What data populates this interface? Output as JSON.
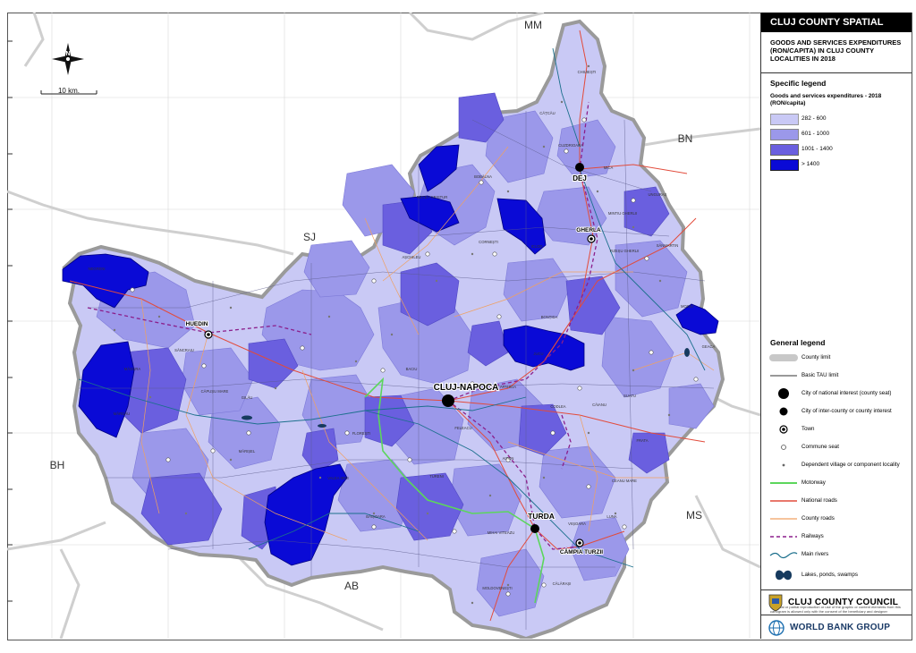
{
  "map": {
    "neighbors": [
      {
        "code": "MM"
      },
      {
        "code": "BN"
      },
      {
        "code": "SJ"
      },
      {
        "code": "BH"
      },
      {
        "code": "MS"
      },
      {
        "code": "AB"
      }
    ],
    "scale_label": "10 km.",
    "cities": [
      {
        "name": "CLUJ-NAPOCA",
        "type": "national"
      },
      {
        "name": "DEJ",
        "type": "county"
      },
      {
        "name": "TURDA",
        "type": "county"
      },
      {
        "name": "GHERLA",
        "type": "town"
      },
      {
        "name": "HUEDIN",
        "type": "town"
      },
      {
        "name": "CÂMPIA TURZII",
        "type": "town"
      }
    ],
    "localities": [
      "CHIUIEȘTI",
      "CĂȚCĂU",
      "CUZDRIOARA",
      "MICA",
      "UNGURAȘ",
      "BOBÂLNA",
      "RECEA-CRISTUR",
      "ICLOD",
      "SÂNMARTIN",
      "FIZEȘU GHERLII",
      "MINTIU GHERLII",
      "CORNEȘTI",
      "AȘCHILEU",
      "NEGRENI",
      "BONȚIDA",
      "JUCU",
      "CĂIANU",
      "GEACA",
      "MOCIU",
      "SUATU",
      "CODLEA",
      "FRATA",
      "CEANU MARE",
      "VIIȘOARA",
      "LUNA",
      "MIHAI VITEAZU",
      "CĂLĂRAȘI",
      "MOLDOVENEȘTI",
      "BĂIȘOARA",
      "VALEA IERII",
      "MĂRIȘEL",
      "MĂGURA",
      "SÂNCRAIU",
      "MĂRGĂU",
      "FLOREȘTI",
      "GILĂU",
      "BACIU",
      "FELEACU",
      "CĂPUȘU MARE",
      "APAHIDA",
      "TURENI",
      "AITON"
    ]
  },
  "panel": {
    "title": "CLUJ COUNTY SPATIAL PLAN",
    "subtitle": "GOODS AND SERVICES EXPENDITURES (RON/CAPITA) IN CLUJ COUNTY LOCALITIES IN 2018",
    "specific_heading": "Specific legend",
    "indicator_heading": "Goods and services expenditures - 2018 (RON/capita)",
    "classes": [
      {
        "label": "282 - 600",
        "color": "#c9c9f5"
      },
      {
        "label": "601 - 1000",
        "color": "#9b98ea"
      },
      {
        "label": "1001 - 1400",
        "color": "#6a5fdf"
      },
      {
        "label": "> 1400",
        "color": "#0a0ad6"
      }
    ],
    "general_heading": "General legend",
    "general": [
      {
        "label": "County limit",
        "symbol": "county-limit"
      },
      {
        "label": "Basic TAU limit",
        "symbol": "tau-limit"
      },
      {
        "label": "City of national interest (county seat)",
        "symbol": "city-national"
      },
      {
        "label": "City of inter-county or county interest",
        "symbol": "city-county"
      },
      {
        "label": "Town",
        "symbol": "town"
      },
      {
        "label": "Commune seat",
        "symbol": "commune-seat"
      },
      {
        "label": "Dependent village or component locality",
        "symbol": "village"
      },
      {
        "label": "Motorway",
        "symbol": "motorway"
      },
      {
        "label": "National roads",
        "symbol": "national-road"
      },
      {
        "label": "County roads",
        "symbol": "county-road"
      },
      {
        "label": "Railways",
        "symbol": "railway"
      },
      {
        "label": "Main rivers",
        "symbol": "river"
      },
      {
        "label": "Lakes, ponds, swamps",
        "symbol": "lake"
      }
    ],
    "disclaimer": "The total or partial reproduction or use of the graphic or content elements from this cartogram is allowed only with the consent of the beneficiary and designer",
    "logos": [
      {
        "label": "CLUJ COUNTY COUNCIL",
        "icon": "county-crest-icon"
      },
      {
        "label": "WORLD BANK GROUP",
        "icon": "globe-icon"
      }
    ]
  }
}
